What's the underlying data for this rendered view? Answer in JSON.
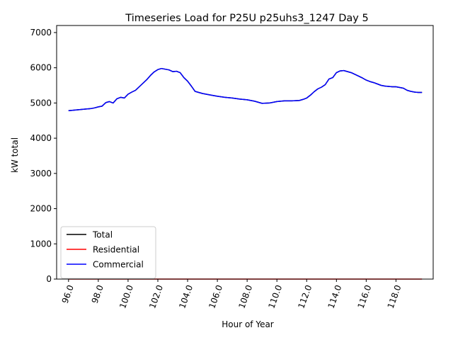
{
  "chart_data": {
    "type": "line",
    "title": "Timeseries Load for P25U p25uhs3_1247  Day 5",
    "xlabel": "Hour of Year",
    "ylabel": "kW total",
    "xlim": [
      95.2,
      120.5
    ],
    "ylim": [
      0,
      7200
    ],
    "xticks": [
      96,
      98,
      100,
      102,
      104,
      106,
      108,
      110,
      112,
      114,
      116,
      118
    ],
    "xtick_labels": [
      "96.0",
      "98.0",
      "100.0",
      "102.0",
      "104.0",
      "106.0",
      "108.0",
      "110.0",
      "112.0",
      "114.0",
      "116.0",
      "118.0"
    ],
    "yticks": [
      0,
      1000,
      2000,
      3000,
      4000,
      5000,
      6000,
      7000
    ],
    "ytick_labels": [
      "0",
      "1000",
      "2000",
      "3000",
      "4000",
      "5000",
      "6000",
      "7000"
    ],
    "grid": false,
    "legend_position": "lower-left",
    "x": [
      96.0,
      96.25,
      96.5,
      96.75,
      97.0,
      97.25,
      97.5,
      97.75,
      98.0,
      98.25,
      98.5,
      98.75,
      99.0,
      99.25,
      99.5,
      99.75,
      100.0,
      100.25,
      100.5,
      100.75,
      101.0,
      101.25,
      101.5,
      101.75,
      102.0,
      102.25,
      102.5,
      102.75,
      103.0,
      103.25,
      103.5,
      103.75,
      104.0,
      104.25,
      104.5,
      104.75,
      105.0,
      105.5,
      106.0,
      106.5,
      107.0,
      107.5,
      108.0,
      108.5,
      109.0,
      109.5,
      110.0,
      110.5,
      111.0,
      111.5,
      111.75,
      112.0,
      112.25,
      112.5,
      112.75,
      113.0,
      113.25,
      113.5,
      113.75,
      114.0,
      114.25,
      114.5,
      114.75,
      115.0,
      115.25,
      115.5,
      115.75,
      116.0,
      116.25,
      116.5,
      116.75,
      117.0,
      117.25,
      117.5,
      117.75,
      118.0,
      118.25,
      118.5,
      118.75,
      119.0,
      119.25,
      119.5,
      119.75
    ],
    "series": [
      {
        "name": "Total",
        "color": "#000000",
        "values": [
          4780,
          4790,
          4800,
          4810,
          4820,
          4830,
          4840,
          4860,
          4890,
          4910,
          5010,
          5040,
          5000,
          5120,
          5160,
          5140,
          5250,
          5310,
          5360,
          5460,
          5560,
          5660,
          5780,
          5880,
          5950,
          5980,
          5960,
          5940,
          5890,
          5900,
          5860,
          5720,
          5620,
          5480,
          5330,
          5300,
          5270,
          5230,
          5190,
          5160,
          5140,
          5110,
          5090,
          5050,
          4990,
          5000,
          5040,
          5060,
          5060,
          5070,
          5100,
          5140,
          5220,
          5320,
          5400,
          5450,
          5520,
          5680,
          5720,
          5860,
          5910,
          5920,
          5890,
          5860,
          5810,
          5760,
          5710,
          5650,
          5610,
          5580,
          5540,
          5500,
          5480,
          5470,
          5460,
          5460,
          5440,
          5420,
          5360,
          5330,
          5310,
          5300,
          5300
        ]
      },
      {
        "name": "Residential",
        "color": "#ff0000",
        "values": [
          0,
          0,
          0,
          0,
          0,
          0,
          0,
          0,
          0,
          0,
          0,
          0,
          0,
          0,
          0,
          0,
          0,
          0,
          0,
          0,
          0,
          0,
          0,
          0,
          0,
          0,
          0,
          0,
          0,
          0,
          0,
          0,
          0,
          0,
          0,
          0,
          0,
          0,
          0,
          0,
          0,
          0,
          0,
          0,
          0,
          0,
          0,
          0,
          0,
          0,
          0,
          0,
          0,
          0,
          0,
          0,
          0,
          0,
          0,
          0,
          0,
          0,
          0,
          0,
          0,
          0,
          0,
          0,
          0,
          0,
          0,
          0,
          0,
          0,
          0,
          0,
          0,
          0,
          0,
          0,
          0,
          0,
          0
        ]
      },
      {
        "name": "Commercial",
        "color": "#0000ff",
        "values": [
          4780,
          4790,
          4800,
          4810,
          4820,
          4830,
          4840,
          4860,
          4890,
          4910,
          5010,
          5040,
          5000,
          5120,
          5160,
          5140,
          5250,
          5310,
          5360,
          5460,
          5560,
          5660,
          5780,
          5880,
          5950,
          5980,
          5960,
          5940,
          5890,
          5900,
          5860,
          5720,
          5620,
          5480,
          5330,
          5300,
          5270,
          5230,
          5190,
          5160,
          5140,
          5110,
          5090,
          5050,
          4990,
          5000,
          5040,
          5060,
          5060,
          5070,
          5100,
          5140,
          5220,
          5320,
          5400,
          5450,
          5520,
          5680,
          5720,
          5860,
          5910,
          5920,
          5890,
          5860,
          5810,
          5760,
          5710,
          5650,
          5610,
          5580,
          5540,
          5500,
          5480,
          5470,
          5460,
          5460,
          5440,
          5420,
          5360,
          5330,
          5310,
          5300,
          5300
        ]
      }
    ]
  }
}
